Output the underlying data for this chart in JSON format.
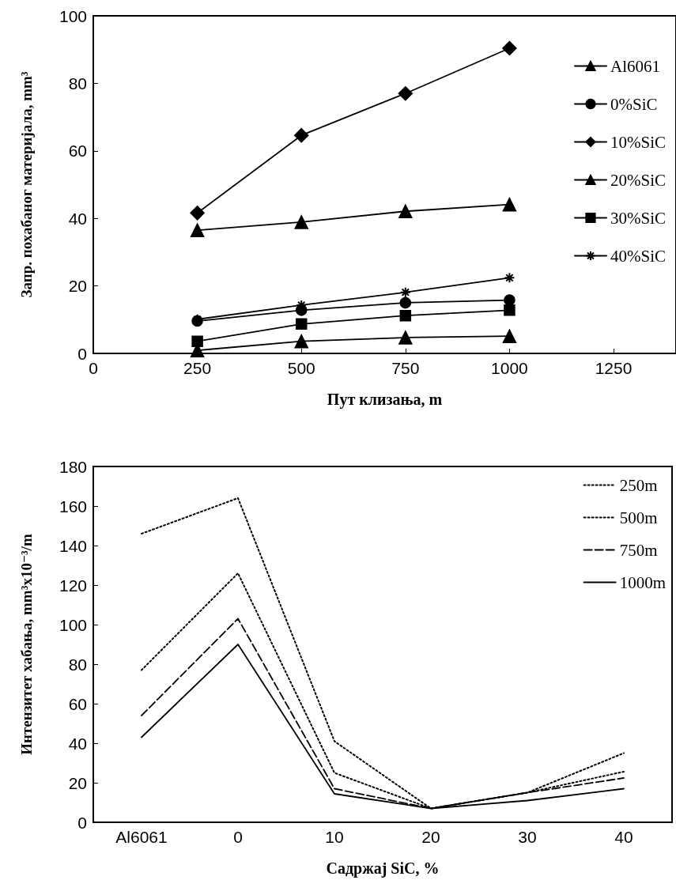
{
  "chart_data": [
    {
      "type": "line",
      "xlabel": "Пут клизања, m",
      "ylabel": "Запр. похабаног материјала, mm³",
      "x": [
        250,
        500,
        750,
        1000
      ],
      "xlim": [
        0,
        1400
      ],
      "xticks": [
        0,
        250,
        500,
        750,
        1000,
        1250
      ],
      "ylim": [
        0,
        100
      ],
      "yticks": [
        0,
        20,
        40,
        60,
        80,
        100
      ],
      "grid": false,
      "legend": "right",
      "line_style": "solid",
      "series": [
        {
          "name": "Al6061",
          "color": "#000000",
          "marker": "triangle",
          "values": [
            36.5,
            38.9,
            42.1,
            44.1
          ]
        },
        {
          "name": "0%SiC",
          "color": "#000000",
          "marker": "circle",
          "values": [
            9.6,
            12.8,
            15.0,
            15.8
          ]
        },
        {
          "name": "10%SiC",
          "color": "#000000",
          "marker": "diamond",
          "values": [
            41.6,
            64.6,
            77.0,
            90.4
          ]
        },
        {
          "name": "20%SiC",
          "color": "#000000",
          "marker": "triangle",
          "values": [
            0.9,
            3.6,
            4.7,
            5.1
          ]
        },
        {
          "name": "30%SiC",
          "color": "#000000",
          "marker": "square",
          "values": [
            3.6,
            8.7,
            11.2,
            12.8
          ]
        },
        {
          "name": "40%SiC",
          "color": "#000000",
          "marker": "cross",
          "values": [
            10.1,
            14.3,
            18.1,
            22.4
          ]
        }
      ]
    },
    {
      "type": "line",
      "xlabel": "Садржај SiC, %",
      "ylabel": "Интензитет хабања, mm³x10⁻³/m",
      "categories": [
        "Al6061",
        "0",
        "10",
        "20",
        "30",
        "40"
      ],
      "ylim": [
        0,
        180
      ],
      "yticks": [
        0,
        20,
        40,
        60,
        80,
        100,
        120,
        140,
        160,
        180
      ],
      "grid": false,
      "legend": "top right",
      "marker": "none",
      "series": [
        {
          "name": "250m",
          "color": "#000000",
          "line_style": "dotted",
          "values": [
            146,
            164,
            41,
            7,
            15,
            35
          ]
        },
        {
          "name": "500m",
          "color": "#000000",
          "line_style": "dotted",
          "values": [
            77,
            126,
            25,
            7,
            15,
            25.6
          ]
        },
        {
          "name": "750m",
          "color": "#000000",
          "line_style": "dashed",
          "values": [
            54,
            103,
            17,
            7,
            15,
            22.4
          ]
        },
        {
          "name": "1000m",
          "color": "#000000",
          "line_style": "solid",
          "values": [
            43,
            90,
            14.4,
            7,
            11,
            17
          ]
        }
      ]
    }
  ]
}
